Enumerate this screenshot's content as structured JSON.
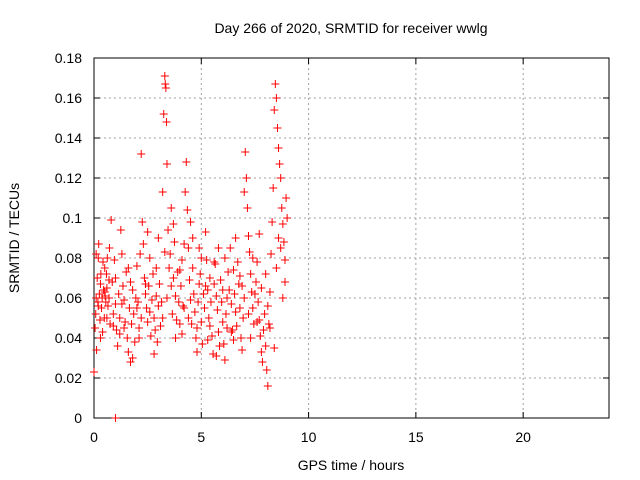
{
  "chart_data": {
    "type": "scatter",
    "title": "Day 266 of 2020, SRMTID for receiver wwlg",
    "xlabel": "GPS time / hours",
    "ylabel": "SRMTID / TECUs",
    "xlim": [
      0,
      24
    ],
    "ylim": [
      0,
      0.18
    ],
    "grid": true,
    "marker": "+",
    "color": "#ff0000",
    "x_ticks": [
      0,
      5,
      10,
      15,
      20
    ],
    "x_tick_labels": [
      "0",
      "5",
      "10",
      "15",
      "20"
    ],
    "y_ticks": [
      0,
      0.02,
      0.04,
      0.06,
      0.08,
      0.1,
      0.12,
      0.14,
      0.16,
      0.18
    ],
    "y_tick_labels": [
      "0",
      "0.02",
      "0.04",
      "0.06",
      "0.08",
      "0.1",
      "0.12",
      "0.14",
      "0.16",
      "0.18"
    ],
    "series": [
      {
        "points": [
          [
            0.0,
            0.023
          ],
          [
            0.05,
            0.045
          ],
          [
            0.08,
            0.052
          ],
          [
            0.1,
            0.06
          ],
          [
            0.12,
            0.034
          ],
          [
            0.15,
            0.07
          ],
          [
            0.18,
            0.058
          ],
          [
            0.2,
            0.08
          ],
          [
            0.22,
            0.087
          ],
          [
            0.25,
            0.062
          ],
          [
            0.28,
            0.049
          ],
          [
            0.3,
            0.067
          ],
          [
            0.32,
            0.072
          ],
          [
            0.35,
            0.055
          ],
          [
            0.38,
            0.06
          ],
          [
            0.4,
            0.043
          ],
          [
            0.42,
            0.078
          ],
          [
            0.45,
            0.064
          ],
          [
            0.48,
            0.05
          ],
          [
            0.5,
            0.063
          ],
          [
            0.52,
            0.061
          ],
          [
            0.55,
            0.058
          ],
          [
            0.58,
            0.072
          ],
          [
            0.6,
            0.065
          ],
          [
            0.62,
            0.08
          ],
          [
            0.65,
            0.056
          ],
          [
            0.7,
            0.06
          ],
          [
            0.72,
            0.085
          ],
          [
            0.75,
            0.047
          ],
          [
            0.8,
            0.099
          ],
          [
            0.85,
            0.068
          ],
          [
            0.9,
            0.052
          ],
          [
            0.95,
            0.079
          ],
          [
            1.0,
            0.057
          ],
          [
            1.05,
            0.044
          ],
          [
            1.1,
            0.036
          ],
          [
            1.15,
            0.062
          ],
          [
            1.2,
            0.05
          ],
          [
            1.25,
            0.094
          ],
          [
            1.3,
            0.082
          ],
          [
            1.35,
            0.066
          ],
          [
            1.4,
            0.059
          ],
          [
            1.45,
            0.048
          ],
          [
            1.5,
            0.073
          ],
          [
            1.55,
            0.04
          ],
          [
            1.6,
            0.033
          ],
          [
            1.65,
            0.055
          ],
          [
            1.7,
            0.028
          ],
          [
            1.75,
            0.047
          ],
          [
            1.8,
            0.064
          ],
          [
            1.85,
            0.052
          ],
          [
            1.9,
            0.038
          ],
          [
            1.95,
            0.06
          ],
          [
            2.0,
            0.076
          ],
          [
            2.05,
            0.058
          ],
          [
            2.1,
            0.045
          ],
          [
            2.15,
            0.082
          ],
          [
            2.2,
            0.132
          ],
          [
            2.25,
            0.098
          ],
          [
            2.3,
            0.087
          ],
          [
            2.35,
            0.07
          ],
          [
            2.4,
            0.062
          ],
          [
            2.45,
            0.055
          ],
          [
            2.5,
            0.048
          ],
          [
            2.55,
            0.066
          ],
          [
            2.6,
            0.053
          ],
          [
            2.65,
            0.041
          ],
          [
            2.7,
            0.059
          ],
          [
            2.75,
            0.072
          ],
          [
            2.8,
            0.05
          ],
          [
            2.85,
            0.044
          ],
          [
            2.9,
            0.061
          ],
          [
            2.95,
            0.038
          ],
          [
            3.0,
            0.056
          ],
          [
            3.05,
            0.067
          ],
          [
            3.1,
            0.046
          ],
          [
            3.15,
            0.058
          ],
          [
            3.2,
            0.113
          ],
          [
            3.25,
            0.152
          ],
          [
            3.3,
            0.171
          ],
          [
            3.32,
            0.167
          ],
          [
            3.35,
            0.165
          ],
          [
            3.38,
            0.148
          ],
          [
            3.4,
            0.127
          ],
          [
            3.45,
            0.094
          ],
          [
            3.5,
            0.075
          ],
          [
            3.55,
            0.082
          ],
          [
            3.6,
            0.066
          ],
          [
            3.65,
            0.052
          ],
          [
            3.7,
            0.07
          ],
          [
            3.75,
            0.088
          ],
          [
            3.8,
            0.061
          ],
          [
            3.85,
            0.049
          ],
          [
            3.9,
            0.073
          ],
          [
            3.95,
            0.058
          ],
          [
            4.0,
            0.047
          ],
          [
            4.05,
            0.066
          ],
          [
            4.1,
            0.079
          ],
          [
            4.15,
            0.056
          ],
          [
            4.2,
            0.087
          ],
          [
            4.25,
            0.113
          ],
          [
            4.3,
            0.128
          ],
          [
            4.35,
            0.104
          ],
          [
            4.4,
            0.085
          ],
          [
            4.45,
            0.069
          ],
          [
            4.5,
            0.059
          ],
          [
            4.55,
            0.047
          ],
          [
            4.6,
            0.075
          ],
          [
            4.65,
            0.062
          ],
          [
            4.7,
            0.053
          ],
          [
            4.75,
            0.04
          ],
          [
            4.8,
            0.033
          ],
          [
            4.85,
            0.058
          ],
          [
            4.9,
            0.067
          ],
          [
            4.95,
            0.072
          ],
          [
            5.0,
            0.048
          ],
          [
            5.05,
            0.037
          ],
          [
            5.1,
            0.062
          ],
          [
            5.15,
            0.055
          ],
          [
            5.2,
            0.093
          ],
          [
            5.25,
            0.079
          ],
          [
            5.3,
            0.064
          ],
          [
            5.35,
            0.05
          ],
          [
            5.4,
            0.046
          ],
          [
            5.45,
            0.058
          ],
          [
            5.5,
            0.041
          ],
          [
            5.55,
            0.032
          ],
          [
            5.6,
            0.067
          ],
          [
            5.65,
            0.077
          ],
          [
            5.7,
            0.061
          ],
          [
            5.75,
            0.054
          ],
          [
            5.8,
            0.043
          ],
          [
            5.85,
            0.036
          ],
          [
            5.9,
            0.069
          ],
          [
            5.95,
            0.058
          ],
          [
            6.0,
            0.048
          ],
          [
            6.05,
            0.037
          ],
          [
            6.1,
            0.029
          ],
          [
            6.15,
            0.052
          ],
          [
            6.2,
            0.06
          ],
          [
            6.25,
            0.073
          ],
          [
            6.3,
            0.064
          ],
          [
            6.35,
            0.085
          ],
          [
            6.4,
            0.057
          ],
          [
            6.45,
            0.044
          ],
          [
            6.5,
            0.039
          ],
          [
            6.55,
            0.062
          ],
          [
            6.6,
            0.053
          ],
          [
            6.65,
            0.046
          ],
          [
            6.7,
            0.078
          ],
          [
            6.75,
            0.067
          ],
          [
            6.8,
            0.055
          ],
          [
            6.85,
            0.04
          ],
          [
            6.9,
            0.034
          ],
          [
            6.95,
            0.05
          ],
          [
            7.0,
            0.113
          ],
          [
            7.05,
            0.133
          ],
          [
            7.1,
            0.12
          ],
          [
            7.15,
            0.105
          ],
          [
            7.2,
            0.091
          ],
          [
            7.25,
            0.083
          ],
          [
            7.3,
            0.072
          ],
          [
            7.35,
            0.063
          ],
          [
            7.4,
            0.055
          ],
          [
            7.45,
            0.047
          ],
          [
            7.5,
            0.062
          ],
          [
            7.55,
            0.068
          ],
          [
            7.6,
            0.078
          ],
          [
            7.65,
            0.058
          ],
          [
            7.7,
            0.049
          ],
          [
            7.75,
            0.041
          ],
          [
            7.8,
            0.033
          ],
          [
            7.85,
            0.028
          ],
          [
            7.9,
            0.044
          ],
          [
            7.95,
            0.052
          ],
          [
            8.0,
            0.036
          ],
          [
            8.05,
            0.024
          ],
          [
            8.1,
            0.016
          ],
          [
            8.15,
            0.047
          ],
          [
            8.2,
            0.063
          ],
          [
            8.25,
            0.082
          ],
          [
            8.3,
            0.098
          ],
          [
            8.35,
            0.115
          ],
          [
            8.4,
            0.154
          ],
          [
            8.45,
            0.167
          ],
          [
            8.5,
            0.16
          ],
          [
            8.55,
            0.145
          ],
          [
            8.6,
            0.135
          ],
          [
            8.65,
            0.127
          ],
          [
            8.7,
            0.12
          ],
          [
            8.75,
            0.105
          ],
          [
            8.8,
            0.097
          ],
          [
            8.85,
            0.088
          ],
          [
            8.9,
            0.079
          ],
          [
            8.95,
            0.11
          ],
          [
            9.0,
            0.1
          ],
          [
            0.3,
            0.04
          ],
          [
            0.6,
            0.05
          ],
          [
            1.0,
            0.07
          ],
          [
            1.4,
            0.045
          ],
          [
            1.8,
            0.03
          ],
          [
            2.2,
            0.05
          ],
          [
            2.6,
            0.08
          ],
          [
            3.0,
            0.09
          ],
          [
            3.4,
            0.06
          ],
          [
            3.8,
            0.04
          ],
          [
            4.2,
            0.055
          ],
          [
            4.6,
            0.09
          ],
          [
            5.0,
            0.08
          ],
          [
            5.4,
            0.07
          ],
          [
            5.8,
            0.085
          ],
          [
            6.2,
            0.045
          ],
          [
            6.6,
            0.09
          ],
          [
            7.0,
            0.06
          ],
          [
            7.4,
            0.08
          ],
          [
            7.8,
            0.065
          ],
          [
            8.2,
            0.045
          ],
          [
            8.6,
            0.09
          ],
          [
            8.8,
            0.06
          ],
          [
            0.1,
            0.082
          ],
          [
            0.5,
            0.075
          ],
          [
            0.9,
            0.046
          ],
          [
            1.3,
            0.057
          ],
          [
            1.7,
            0.068
          ],
          [
            2.1,
            0.04
          ],
          [
            2.5,
            0.093
          ],
          [
            2.9,
            0.075
          ],
          [
            3.3,
            0.083
          ],
          [
            3.7,
            0.097
          ],
          [
            4.1,
            0.042
          ],
          [
            4.5,
            0.098
          ],
          [
            4.9,
            0.085
          ],
          [
            5.3,
            0.039
          ],
          [
            5.7,
            0.031
          ],
          [
            6.1,
            0.08
          ],
          [
            6.5,
            0.074
          ],
          [
            6.9,
            0.066
          ],
          [
            7.3,
            0.04
          ],
          [
            7.7,
            0.092
          ],
          [
            8.1,
            0.056
          ],
          [
            8.5,
            0.075
          ],
          [
            8.9,
            0.068
          ],
          [
            0.2,
            0.056
          ],
          [
            0.7,
            0.069
          ],
          [
            1.2,
            0.042
          ],
          [
            1.6,
            0.075
          ],
          [
            2.0,
            0.055
          ],
          [
            2.4,
            0.067
          ],
          [
            2.8,
            0.032
          ],
          [
            3.2,
            0.05
          ],
          [
            3.6,
            0.105
          ],
          [
            4.0,
            0.074
          ],
          [
            4.4,
            0.05
          ],
          [
            4.8,
            0.045
          ],
          [
            5.2,
            0.066
          ],
          [
            5.6,
            0.078
          ],
          [
            6.0,
            0.064
          ],
          [
            6.4,
            0.043
          ],
          [
            6.8,
            0.071
          ],
          [
            7.2,
            0.052
          ],
          [
            7.6,
            0.048
          ],
          [
            8.0,
            0.072
          ],
          [
            8.4,
            0.035
          ],
          [
            8.7,
            0.085
          ],
          [
            1.0,
            0.0
          ]
        ]
      }
    ]
  }
}
